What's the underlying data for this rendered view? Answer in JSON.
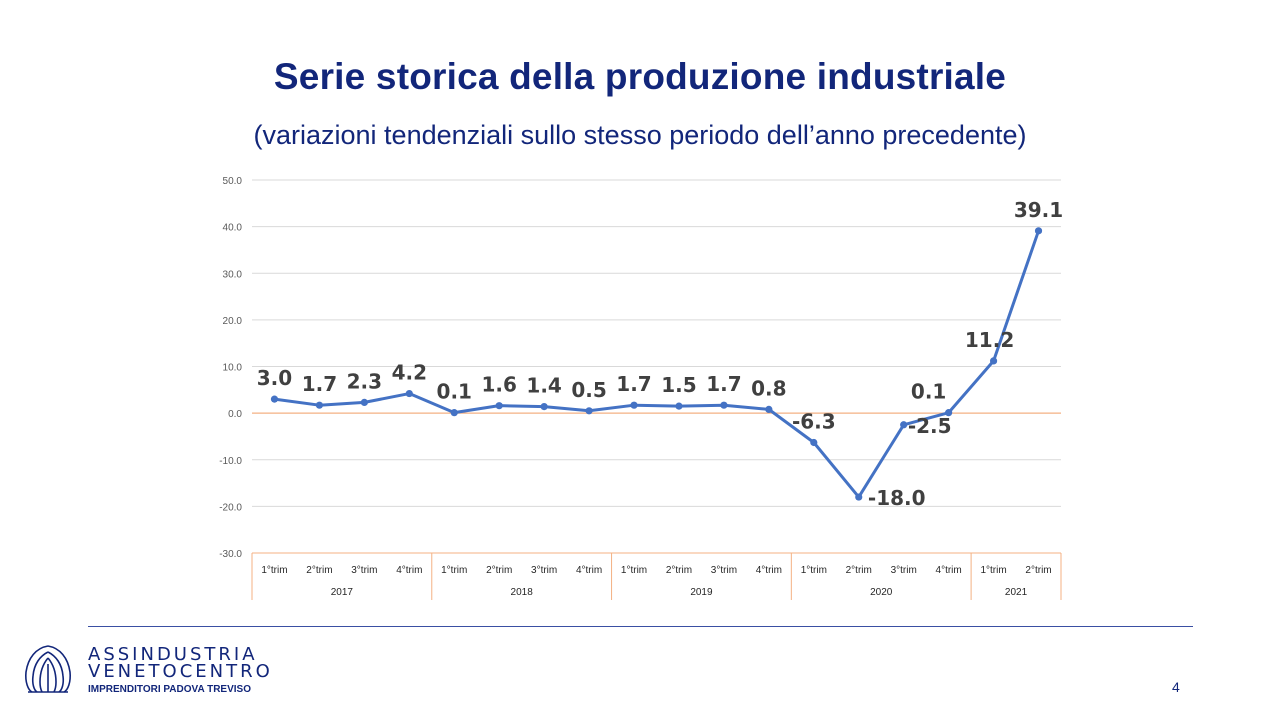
{
  "slide": {
    "title": "Serie storica della produzione industriale",
    "subtitle": "(variazioni tendenziali sullo stesso periodo dell’anno precedente)",
    "page_number": "4"
  },
  "footer": {
    "org_line1": "ASSINDUSTRIA",
    "org_line2": "VENETOCENTRO",
    "tagline": "IMPRENDITORI PADOVA TREVISO",
    "logo_icon": "assindustria-logo-icon"
  },
  "chart_data": {
    "type": "line",
    "title": "",
    "xlabel": "",
    "ylabel": "",
    "ylim": [
      -30,
      50
    ],
    "yticks": [
      "50.0",
      "40.0",
      "30.0",
      "20.0",
      "10.0",
      "0.0",
      "-10.0",
      "-20.0",
      "-30.0"
    ],
    "grid": true,
    "legend": "none",
    "x_groups": [
      {
        "label": "2017",
        "categories": [
          "1°trim",
          "2°trim",
          "3°trim",
          "4°trim"
        ]
      },
      {
        "label": "2018",
        "categories": [
          "1°trim",
          "2°trim",
          "3°trim",
          "4°trim"
        ]
      },
      {
        "label": "2019",
        "categories": [
          "1°trim",
          "2°trim",
          "3°trim",
          "4°trim"
        ]
      },
      {
        "label": "2020",
        "categories": [
          "1°trim",
          "2°trim",
          "3°trim",
          "4°trim"
        ]
      },
      {
        "label": "2021",
        "categories": [
          "1°trim",
          "2°trim"
        ]
      }
    ],
    "series": [
      {
        "values": [
          3.0,
          1.7,
          2.3,
          4.2,
          0.1,
          1.6,
          1.4,
          0.5,
          1.7,
          1.5,
          1.7,
          0.8,
          -6.3,
          -18.0,
          -2.5,
          0.1,
          11.2,
          39.1
        ],
        "labels": [
          "3.0",
          "1.7",
          "2.3",
          "4.2",
          "0.1",
          "1.6",
          "1.4",
          "0.5",
          "1.7",
          "1.5",
          "1.7",
          "0.8",
          "-6.3",
          "-18.0",
          "-2.5",
          "0.1",
          "11.2",
          "39.1"
        ],
        "color": "#4472c4"
      }
    ],
    "colors": {
      "line": "#4472c4",
      "zero_line": "#f4b183",
      "grid": "#d9d9d9",
      "axis_text": "#595959",
      "data_label": "#404040",
      "category_border": "#f4b183"
    }
  }
}
